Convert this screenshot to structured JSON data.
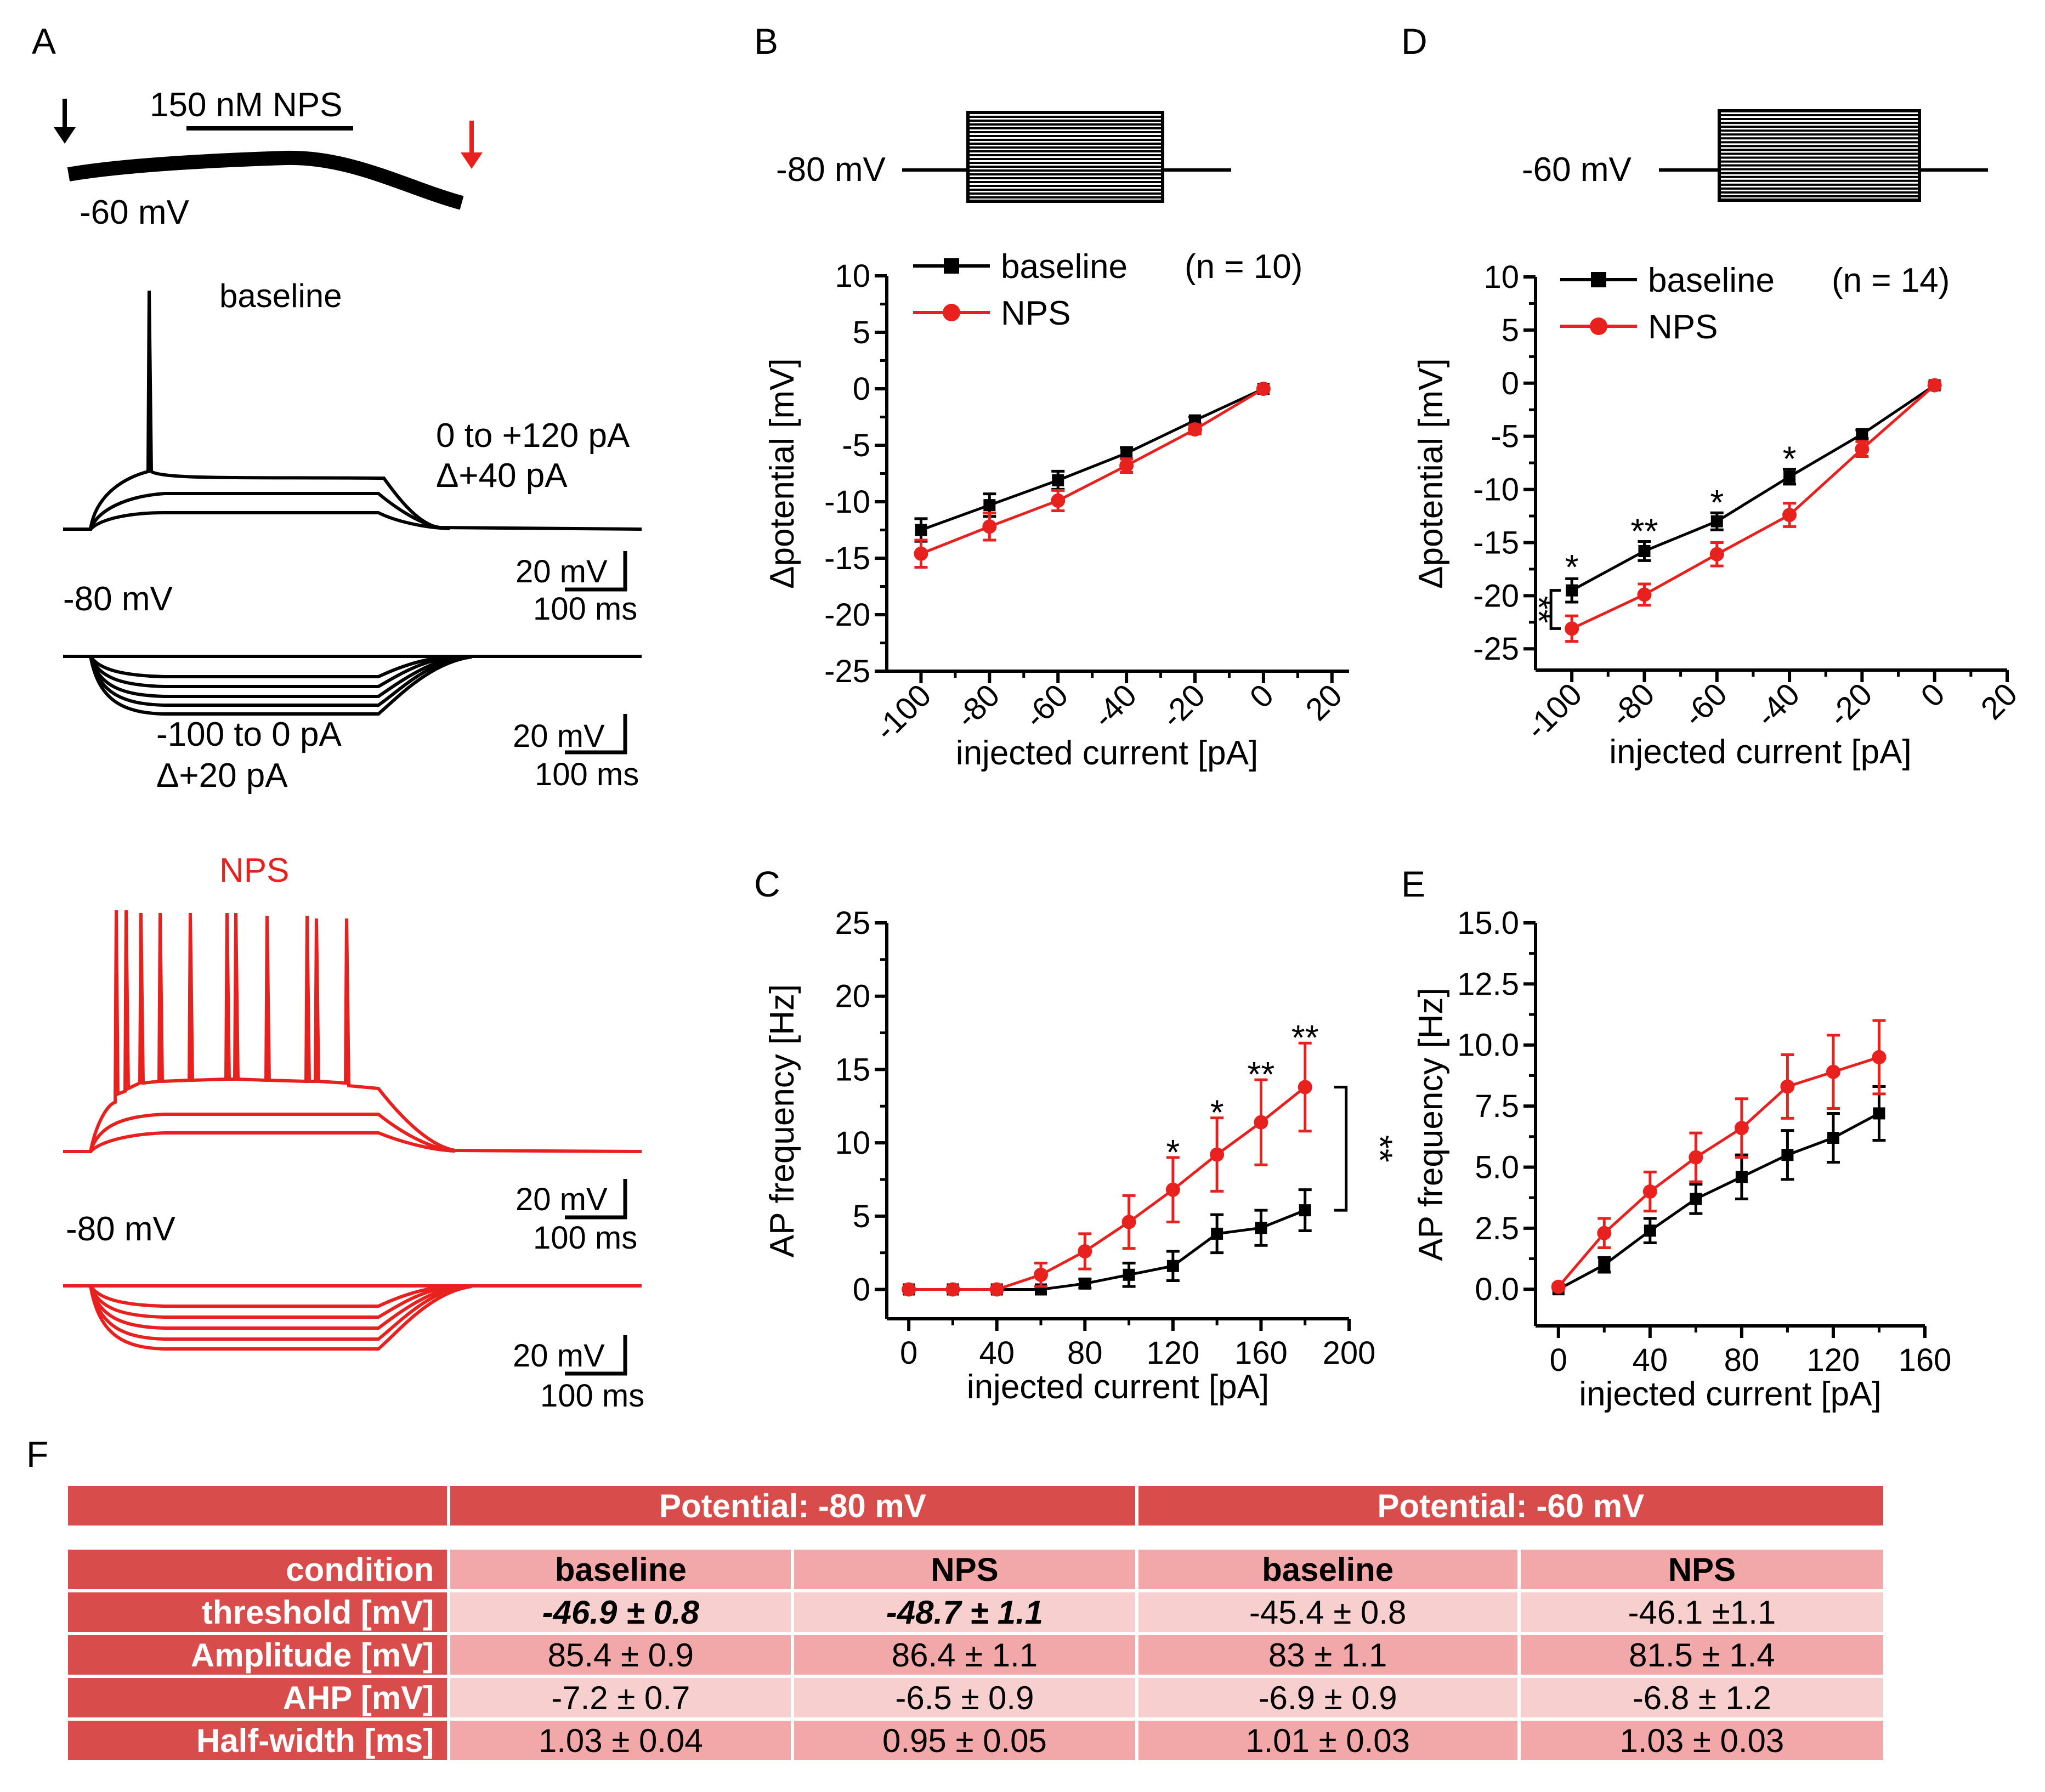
{
  "panel_labels": {
    "a": "A",
    "b": "B",
    "c": "C",
    "d": "D",
    "e": "E",
    "f": "F"
  },
  "panel_a": {
    "drug_bar_label": "150 nM NPS",
    "holding_label": "-60 mV",
    "baseline_title": "baseline",
    "nps_title": "NPS",
    "depol_step_label": "0 to +120 pA",
    "depol_increment_label": "Δ+40 pA",
    "hyperpol_step_label": "-100 to 0 pA",
    "hyperpol_increment_label": "Δ+20 pA",
    "rest_label_baseline": "-80 mV",
    "rest_label_nps": "-80 mV",
    "scale_voltage": "20 mV",
    "scale_time": "100 ms",
    "colors": {
      "baseline": "#000000",
      "nps": "#e8201e"
    }
  },
  "protocol_b": {
    "holding": "-80 mV"
  },
  "protocol_d": {
    "holding": "-60 mV"
  },
  "chart_data": [
    {
      "id": "B",
      "type": "line",
      "xlabel": "injected current [pA]",
      "ylabel": "Δpotential [mV]",
      "xlim": [
        -110,
        25
      ],
      "ylim": [
        -25,
        10
      ],
      "xticks": [
        -100,
        -80,
        -60,
        -40,
        -20,
        0,
        20
      ],
      "yticks": [
        10,
        5,
        0,
        -5,
        -10,
        -15,
        -20,
        -25
      ],
      "x": [
        -100,
        -80,
        -60,
        -40,
        -20,
        0
      ],
      "legend": {
        "placement": "top-left",
        "n_label": "(n = 10)"
      },
      "series": [
        {
          "name": "baseline",
          "color": "#000000",
          "values": [
            -12.5,
            -10.3,
            -8.1,
            -5.7,
            -2.8,
            0
          ],
          "err": [
            1.0,
            1.0,
            0.8,
            0.5,
            0.3,
            0
          ]
        },
        {
          "name": "NPS",
          "color": "#e8201e",
          "values": [
            -14.6,
            -12.2,
            -9.9,
            -6.8,
            -3.6,
            0
          ],
          "err": [
            1.2,
            1.2,
            0.9,
            0.6,
            0.4,
            0
          ]
        }
      ],
      "annotations": []
    },
    {
      "id": "C",
      "type": "line",
      "xlabel": "injected current [pA]",
      "ylabel": "AP frequency [Hz]",
      "xlim": [
        -10,
        200
      ],
      "ylim": [
        -2,
        25
      ],
      "xticks": [
        0,
        40,
        80,
        120,
        160,
        200
      ],
      "yticks": [
        0,
        5,
        10,
        15,
        20,
        25
      ],
      "x": [
        0,
        20,
        40,
        60,
        80,
        100,
        120,
        140,
        160,
        180
      ],
      "series": [
        {
          "name": "baseline",
          "color": "#000000",
          "values": [
            0,
            0,
            0,
            0,
            0.4,
            1.0,
            1.6,
            3.8,
            4.2,
            5.4
          ],
          "err": [
            0,
            0,
            0,
            0,
            0.3,
            0.8,
            1.0,
            1.3,
            1.2,
            1.4
          ]
        },
        {
          "name": "NPS",
          "color": "#e8201e",
          "values": [
            0,
            0,
            0,
            1.0,
            2.6,
            4.6,
            6.8,
            9.2,
            11.4,
            13.8
          ],
          "err": [
            0,
            0,
            0,
            0.8,
            1.2,
            1.8,
            2.2,
            2.5,
            2.9,
            3.0
          ]
        }
      ],
      "annotations": [
        {
          "x": 120,
          "y": 9.6,
          "text": "*"
        },
        {
          "x": 140,
          "y": 12.3,
          "text": "*"
        },
        {
          "x": 160,
          "y": 14.9,
          "text": "**"
        },
        {
          "x": 180,
          "y": 17.4,
          "text": "**"
        }
      ],
      "bracket": {
        "label": "**",
        "y_top": 13.8,
        "y_bottom": 5.4
      }
    },
    {
      "id": "D",
      "type": "line",
      "xlabel": "injected current [pA]",
      "ylabel": "Δpotential [mV]",
      "xlim": [
        -110,
        20
      ],
      "ylim": [
        -27,
        10
      ],
      "xticks": [
        -100,
        -80,
        -60,
        -40,
        -20,
        0,
        20
      ],
      "yticks": [
        10,
        5,
        0,
        -5,
        -10,
        -15,
        -20,
        -25
      ],
      "x": [
        -100,
        -80,
        -60,
        -40,
        -20,
        0
      ],
      "legend": {
        "placement": "top-left",
        "n_label": "(n = 14)"
      },
      "series": [
        {
          "name": "baseline",
          "color": "#000000",
          "values": [
            -19.5,
            -15.8,
            -13.0,
            -8.8,
            -4.8,
            -0.2
          ],
          "err": [
            1.1,
            0.9,
            0.8,
            0.7,
            0.4,
            0.3
          ]
        },
        {
          "name": "NPS",
          "color": "#e8201e",
          "values": [
            -23.1,
            -19.9,
            -16.1,
            -12.4,
            -6.2,
            -0.2
          ],
          "err": [
            1.2,
            1.0,
            1.1,
            1.1,
            0.7,
            0.3
          ]
        }
      ],
      "annotations": [
        {
          "x": -100,
          "y": -17.0,
          "text": "*"
        },
        {
          "x": -80,
          "y": -13.6,
          "text": "**"
        },
        {
          "x": -60,
          "y": -10.9,
          "text": "*"
        },
        {
          "x": -40,
          "y": -6.8,
          "text": "*"
        }
      ],
      "bracket": {
        "label": "**",
        "y_top": -19.5,
        "y_bottom": -23.1
      }
    },
    {
      "id": "E",
      "type": "line",
      "xlabel": "injected current [pA]",
      "ylabel": "AP frequency [Hz]",
      "xlim": [
        -10,
        160
      ],
      "ylim": [
        -1.5,
        15
      ],
      "xticks": [
        0,
        40,
        80,
        120,
        160
      ],
      "yticks": [
        "0.0",
        "2.5",
        "5.0",
        "7.5",
        "10.0",
        "12.5",
        "15.0"
      ],
      "x": [
        0,
        20,
        40,
        60,
        80,
        100,
        120,
        140
      ],
      "series": [
        {
          "name": "baseline",
          "color": "#000000",
          "values": [
            0,
            1.0,
            2.4,
            3.7,
            4.6,
            5.5,
            6.2,
            7.2
          ],
          "err": [
            0,
            0.3,
            0.5,
            0.6,
            0.9,
            1.0,
            1.0,
            1.1
          ]
        },
        {
          "name": "NPS",
          "color": "#e8201e",
          "values": [
            0.1,
            2.3,
            4.0,
            5.4,
            6.6,
            8.3,
            8.9,
            9.5
          ],
          "err": [
            0.1,
            0.6,
            0.8,
            1.0,
            1.2,
            1.3,
            1.5,
            1.5
          ]
        }
      ],
      "annotations": []
    }
  ],
  "table": {
    "group_headers": [
      "Potential: -80 mV",
      "Potential: -60 mV"
    ],
    "header_row": {
      "label": "condition",
      "cols": [
        "baseline",
        "NPS",
        "baseline",
        "NPS"
      ]
    },
    "rows": [
      {
        "label": "threshold [mV]",
        "cells": [
          "-46.9 ± 0.8",
          "-48.7 ± 1.1",
          "-45.4 ± 0.8",
          "-46.1 ±1.1"
        ]
      },
      {
        "label": "Amplitude [mV]",
        "cells": [
          "85.4 ± 0.9",
          "86.4 ± 1.1",
          "83 ± 1.1",
          "81.5 ± 1.4"
        ]
      },
      {
        "label": "AHP [mV]",
        "cells": [
          "-7.2 ± 0.7",
          "-6.5 ± 0.9",
          "-6.9 ± 0.9",
          "-6.8 ± 1.2"
        ]
      },
      {
        "label": "Half-width [ms]",
        "cells": [
          "1.03 ± 0.04",
          "0.95 ± 0.05",
          "1.01 ± 0.03",
          "1.03 ± 0.03"
        ]
      }
    ]
  }
}
